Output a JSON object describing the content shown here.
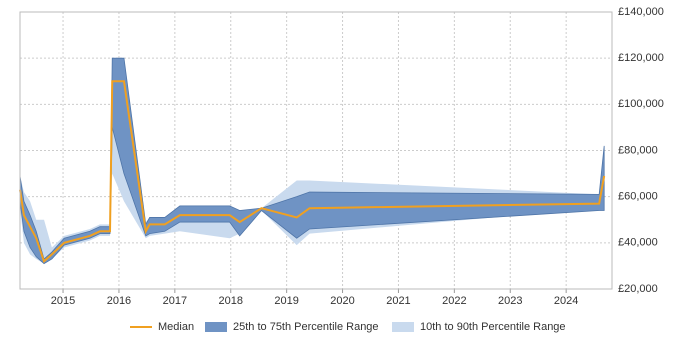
{
  "chart_data": {
    "type": "range-line",
    "x": [
      2014.23,
      2014.3,
      2014.41,
      2014.52,
      2014.66,
      2014.8,
      2015.02,
      2015.48,
      2015.66,
      2015.84,
      2015.88,
      2016.09,
      2016.48,
      2016.55,
      2016.82,
      2017.09,
      2017.98,
      2018.16,
      2018.55,
      2019.18,
      2019.41,
      2024.59,
      2024.68
    ],
    "series": [
      {
        "name": "Median",
        "color": "#f0a020",
        "values": [
          63000,
          52000,
          47000,
          42000,
          32000,
          35000,
          40000,
          43000,
          45000,
          45000,
          110000,
          110000,
          45000,
          48000,
          48000,
          52000,
          52000,
          49000,
          55000,
          51000,
          55000,
          57000,
          69000
        ]
      },
      {
        "name": "25th to 75th Percentile Range",
        "color": "#6f93c4",
        "low": [
          58000,
          45000,
          38000,
          34000,
          31000,
          33000,
          39000,
          42000,
          44000,
          44000,
          90000,
          70000,
          43000,
          44000,
          45000,
          49000,
          49000,
          43000,
          54000,
          42000,
          46000,
          54000,
          54000
        ],
        "high": [
          69000,
          58000,
          52000,
          45000,
          33000,
          36000,
          42000,
          45000,
          47000,
          47000,
          120000,
          120000,
          48000,
          51000,
          51000,
          56000,
          56000,
          54000,
          55000,
          60000,
          62000,
          61000,
          82000
        ]
      },
      {
        "name": "10th to 90th Percentile Range",
        "color": "#c9daee",
        "low": [
          55000,
          40000,
          35000,
          33000,
          31000,
          33000,
          38000,
          41000,
          43000,
          43000,
          70000,
          58000,
          42000,
          43000,
          44000,
          45000,
          42000,
          44000,
          54000,
          39000,
          44000,
          55000,
          55000
        ],
        "high": [
          69000,
          62000,
          58000,
          50000,
          50000,
          38000,
          43000,
          46000,
          48000,
          48000,
          115000,
          120000,
          49000,
          51000,
          51000,
          55000,
          55000,
          54000,
          55000,
          67000,
          67000,
          61000,
          82000
        ]
      }
    ],
    "xlim": [
      2014.23,
      2024.82
    ],
    "xticks": [
      2015,
      2016,
      2017,
      2018,
      2019,
      2020,
      2021,
      2022,
      2023,
      2024
    ],
    "ylim": [
      20000,
      140000
    ],
    "yticks": [
      {
        "value": 20000,
        "label": "£20,000"
      },
      {
        "value": 40000,
        "label": "£40,000"
      },
      {
        "value": 60000,
        "label": "£60,000"
      },
      {
        "value": 80000,
        "label": "£80,000"
      },
      {
        "value": 100000,
        "label": "£100,000"
      },
      {
        "value": 120000,
        "label": "£120,000"
      },
      {
        "value": 140000,
        "label": "£140,000"
      }
    ],
    "grid": true
  }
}
